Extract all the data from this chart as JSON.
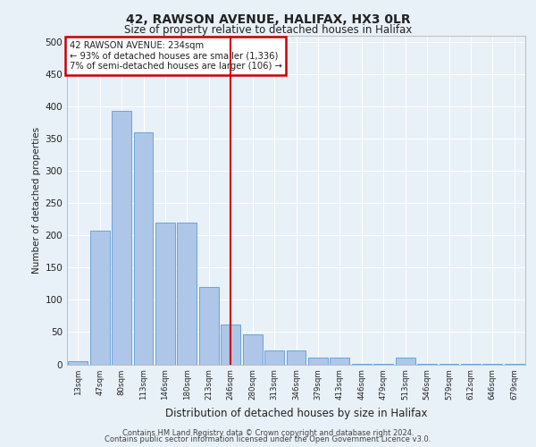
{
  "title1": "42, RAWSON AVENUE, HALIFAX, HX3 0LR",
  "title2": "Size of property relative to detached houses in Halifax",
  "xlabel": "Distribution of detached houses by size in Halifax",
  "ylabel": "Number of detached properties",
  "categories": [
    "13sqm",
    "47sqm",
    "80sqm",
    "113sqm",
    "146sqm",
    "180sqm",
    "213sqm",
    "246sqm",
    "280sqm",
    "313sqm",
    "346sqm",
    "379sqm",
    "413sqm",
    "446sqm",
    "479sqm",
    "513sqm",
    "546sqm",
    "579sqm",
    "612sqm",
    "646sqm",
    "679sqm"
  ],
  "values": [
    5,
    207,
    393,
    360,
    220,
    220,
    120,
    62,
    47,
    22,
    22,
    10,
    10,
    1,
    1,
    10,
    1,
    1,
    1,
    1,
    1
  ],
  "bar_color": "#aec6e8",
  "bar_edge_color": "#5b9bd5",
  "red_line_x": 7,
  "annotation_title": "42 RAWSON AVENUE: 234sqm",
  "annotation_line1": "← 93% of detached houses are smaller (1,336)",
  "annotation_line2": "7% of semi-detached houses are larger (106) →",
  "annotation_box_color": "#ffffff",
  "annotation_box_edge": "#cc0000",
  "ylim": [
    0,
    510
  ],
  "yticks": [
    0,
    50,
    100,
    150,
    200,
    250,
    300,
    350,
    400,
    450,
    500
  ],
  "bg_color": "#e8f0f8",
  "grid_color": "#ffffff",
  "footer1": "Contains HM Land Registry data © Crown copyright and database right 2024.",
  "footer2": "Contains public sector information licensed under the Open Government Licence v3.0."
}
